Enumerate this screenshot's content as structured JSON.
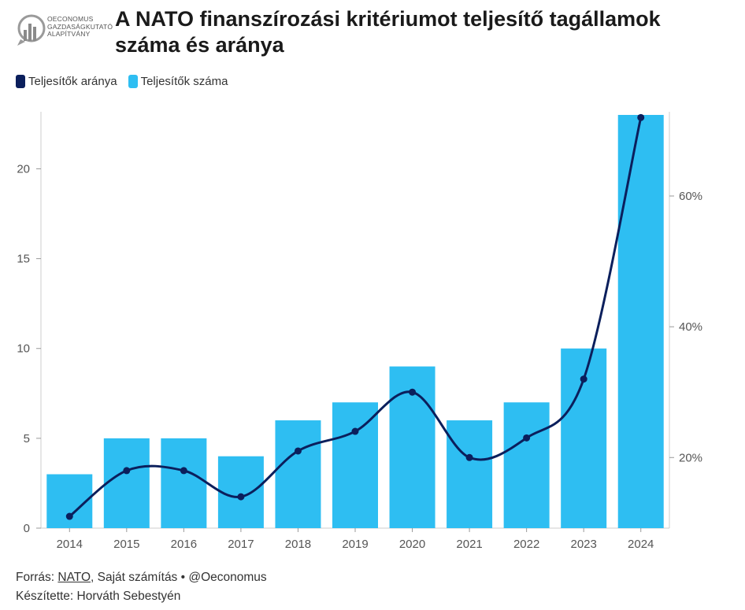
{
  "header": {
    "logo_lines": [
      "OECONOMUS",
      "GAZDASÁGKUTATÓ",
      "ALAPÍTVÁNY"
    ],
    "title": "A NATO finanszírozási kritériumot teljesítő tagállamok száma és aránya"
  },
  "legend": [
    {
      "label": "Teljesítők aránya",
      "color": "#0b1f5c"
    },
    {
      "label": "Teljesítők száma",
      "color": "#2ebef2"
    }
  ],
  "chart_data": {
    "type": "bar",
    "categories": [
      "2014",
      "2015",
      "2016",
      "2017",
      "2018",
      "2019",
      "2020",
      "2021",
      "2022",
      "2023",
      "2024"
    ],
    "series": [
      {
        "name": "Teljesítők száma",
        "type": "bar",
        "axis": "left",
        "color": "#2ebef2",
        "values": [
          3,
          5,
          5,
          4,
          6,
          7,
          9,
          6,
          7,
          10,
          23
        ]
      },
      {
        "name": "Teljesítők aránya",
        "type": "line",
        "axis": "right",
        "color": "#0b1f5c",
        "unit": "%",
        "values": [
          11,
          18,
          18,
          14,
          21,
          24,
          30,
          20,
          23,
          32,
          72
        ]
      }
    ],
    "y_left": {
      "min": 0,
      "max": 23,
      "ticks": [
        0,
        5,
        10,
        15,
        20
      ]
    },
    "y_right": {
      "min": 9.2,
      "max": 72.4,
      "ticks": [
        20,
        40,
        60
      ],
      "tick_suffix": "%"
    },
    "grid": false,
    "legend_position": "top-left"
  },
  "footer": {
    "source_prefix": "Forrás: ",
    "source_link": "NATO",
    "source_suffix": ", Saját számítás • @Oeconomus",
    "author": "Készítette: Horváth Sebestyén"
  }
}
